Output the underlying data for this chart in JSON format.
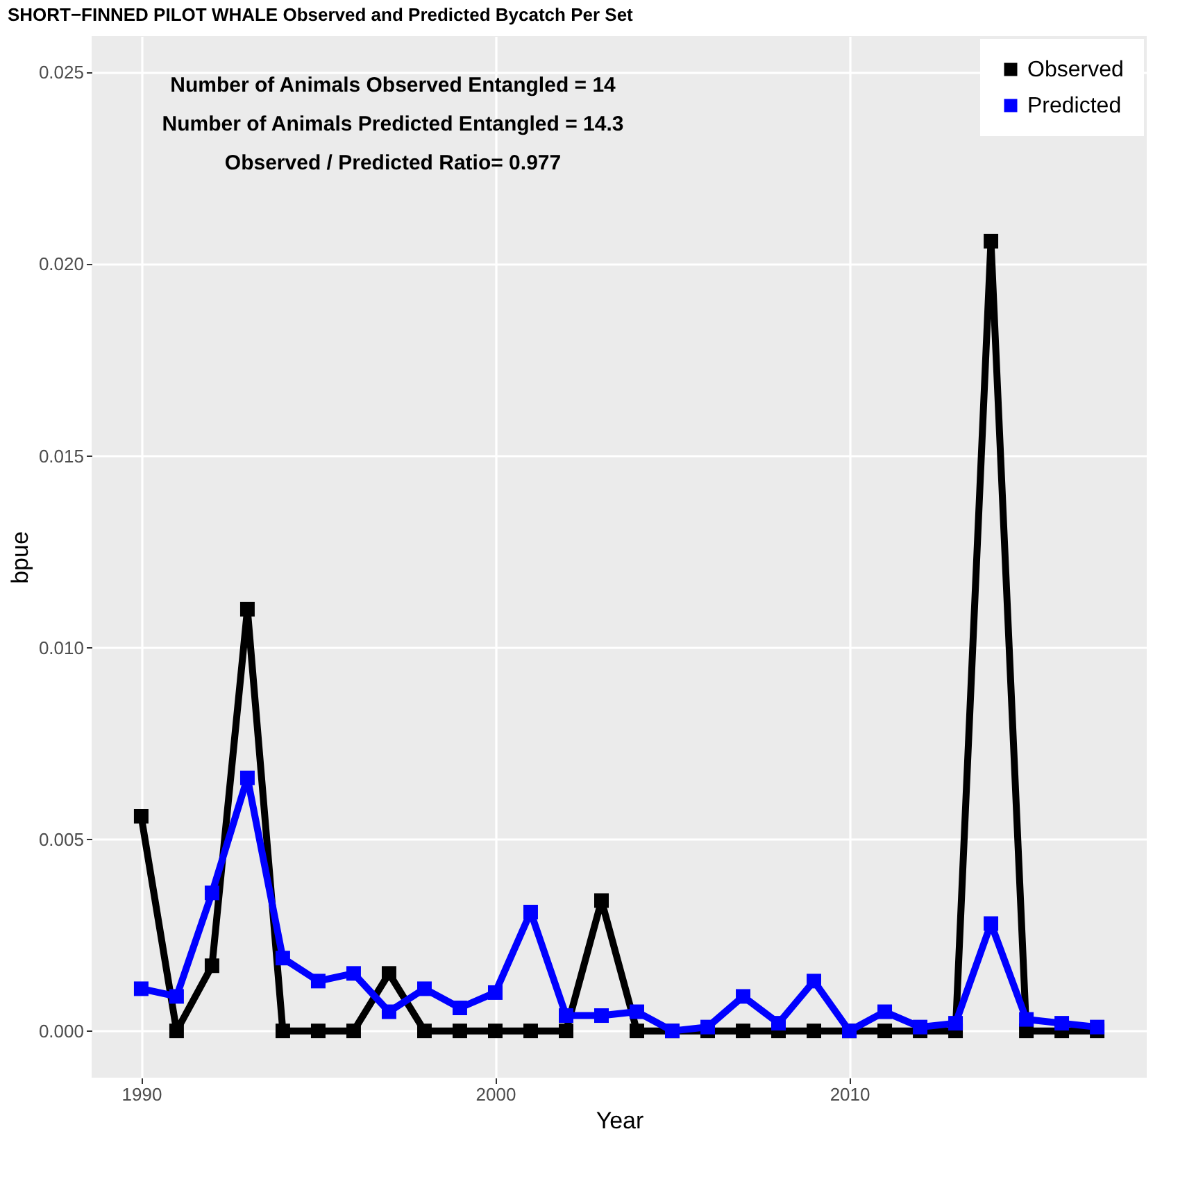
{
  "chart_data": {
    "type": "line",
    "title": "SHORT−FINNED PILOT WHALE Observed and Predicted Bycatch Per Set",
    "xlabel": "Year",
    "ylabel": "bpue",
    "x": [
      1990,
      1991,
      1992,
      1993,
      1994,
      1995,
      1996,
      1997,
      1998,
      1999,
      2000,
      2001,
      2002,
      2003,
      2004,
      2005,
      2006,
      2007,
      2008,
      2009,
      2010,
      2011,
      2012,
      2013,
      2014,
      2015,
      2016,
      2017
    ],
    "series": [
      {
        "name": "Observed",
        "color": "#000000",
        "values": [
          0.0056,
          0,
          0.0017,
          0.011,
          0,
          0,
          0,
          0.0015,
          0,
          0,
          0,
          0,
          0,
          0.0034,
          0,
          0,
          0,
          0,
          0,
          0,
          0,
          0,
          0,
          0,
          0.0206,
          0,
          0,
          0
        ]
      },
      {
        "name": "Predicted",
        "color": "#0000ff",
        "values": [
          0.0011,
          0.0009,
          0.0036,
          0.0066,
          0.0019,
          0.0013,
          0.0015,
          0.0005,
          0.0011,
          0.0006,
          0.001,
          0.0031,
          0.0004,
          0.0004,
          0.0005,
          0,
          0.0001,
          0.0009,
          0.0002,
          0.0013,
          0,
          0.0005,
          0.0001,
          0.0002,
          0.0028,
          0.0003,
          0.0002,
          0.0001
        ]
      }
    ],
    "xlim": [
      1988.6,
      2018.4
    ],
    "xticks": [
      1990,
      2000,
      2010
    ],
    "ylim": [
      -0.00122,
      0.02595
    ],
    "yticks": [
      {
        "value": 0,
        "label": "0.000"
      },
      {
        "value": 0.005,
        "label": "0.005"
      },
      {
        "value": 0.01,
        "label": "0.010"
      },
      {
        "value": 0.015,
        "label": "0.015"
      },
      {
        "value": 0.02,
        "label": "0.020"
      },
      {
        "value": 0.025,
        "label": "0.025"
      }
    ],
    "annotations": [
      "Number of Animals Observed Entangled = 14",
      "Number of Animals Predicted Entangled = 14.3",
      "Observed / Predicted Ratio= 0.977"
    ],
    "grid": true,
    "legend": "top right",
    "marker": "square",
    "line_style": "solid"
  }
}
